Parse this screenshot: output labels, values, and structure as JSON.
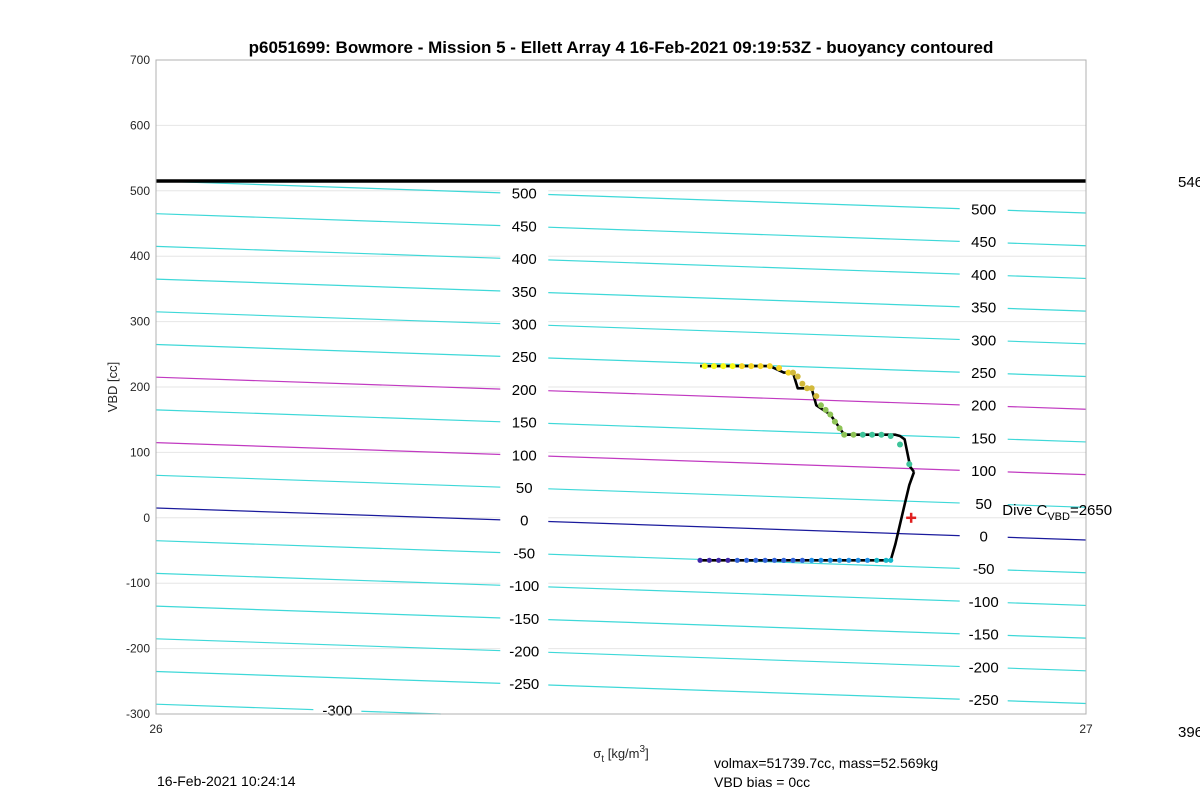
{
  "chart_data": {
    "type": "line",
    "title": "p6051699: Bowmore - Mission 5 - Ellett Array 4 16-Feb-2021 09:19:53Z - buoyancy contoured",
    "xlabel": "σ_t [kg/m³]",
    "xlabel_main": "σ",
    "xlabel_sub": "t",
    "xlabel_unit_prefix": "[kg/m",
    "xlabel_unit_sup": "3",
    "xlabel_unit_suffix": "]",
    "ylabel": "VBD [cc]",
    "xlim": [
      26,
      27
    ],
    "ylim": [
      -300,
      700
    ],
    "x_ticks": [
      "26",
      "27"
    ],
    "y_ticks": [
      "700",
      "600",
      "500",
      "400",
      "300",
      "200",
      "100",
      "0",
      "-100",
      "-200",
      "-300"
    ],
    "grid": true,
    "right_edge_labels": [
      "546",
      "396"
    ],
    "max_vbd_line": 515,
    "contours": {
      "y_at_left": [
        515,
        465,
        415,
        365,
        315,
        265,
        215,
        165,
        115,
        65,
        15,
        -35,
        -85,
        -135,
        -185,
        -235,
        -285
      ],
      "y_at_right": [
        466,
        416,
        366,
        316,
        266,
        216,
        166,
        116,
        66,
        16,
        -34,
        -84,
        -134,
        -184,
        -234,
        -284,
        -334
      ],
      "levels": [
        "500",
        "450",
        "400",
        "350",
        "300",
        "250",
        "200",
        "150",
        "100",
        "50",
        "0",
        "-50",
        "-100",
        "-150",
        "-200",
        "-250",
        "-300"
      ],
      "colors": [
        "#3ed8d8",
        "#3ed8d8",
        "#3ed8d8",
        "#3ed8d8",
        "#3ed8d8",
        "#3ed8d8",
        "#c13ac1",
        "#3ed8d8",
        "#c13ac1",
        "#3ed8d8",
        "#1a1a9c",
        "#3ed8d8",
        "#3ed8d8",
        "#3ed8d8",
        "#3ed8d8",
        "#3ed8d8",
        "#3ed8d8"
      ],
      "label_x_mid": 26.396,
      "label_x_right": 26.89,
      "bottom_label_x": 26.195
    },
    "series": [
      {
        "x": [
          26.585,
          26.66,
          26.675,
          26.685,
          26.69,
          26.705,
          26.71,
          26.725,
          26.74,
          26.795,
          26.8,
          26.805,
          26.81,
          26.81,
          26.815
        ],
        "y": [
          232,
          232,
          222,
          222,
          198,
          198,
          172,
          158,
          127,
          127,
          125,
          120,
          85,
          80,
          70
        ],
        "color": "#000000"
      },
      {
        "x": [
          26.585,
          26.79,
          26.795,
          26.8,
          26.805,
          26.81,
          26.815
        ],
        "y": [
          -65,
          -65,
          -40,
          -10,
          20,
          50,
          70
        ],
        "color": "#000000"
      }
    ],
    "descent_points": {
      "x": [
        26.59,
        26.6,
        26.61,
        26.62,
        26.63,
        26.64,
        26.65,
        26.66,
        26.67,
        26.68,
        26.685,
        26.69,
        26.695,
        26.7,
        26.705,
        26.71,
        26.715,
        26.72,
        26.725,
        26.73,
        26.735,
        26.74,
        26.75,
        26.76,
        26.77,
        26.78,
        26.79,
        26.8,
        26.81
      ],
      "y": [
        232,
        232,
        232,
        232,
        232,
        232,
        232,
        232,
        229,
        222,
        222,
        216,
        205,
        198,
        198,
        186,
        172,
        165,
        158,
        147,
        137,
        127,
        127,
        127,
        127,
        127,
        125,
        112,
        82
      ]
    },
    "ascent_points": {
      "x": [
        26.585,
        26.595,
        26.605,
        26.615,
        26.625,
        26.635,
        26.645,
        26.655,
        26.665,
        26.675,
        26.685,
        26.695,
        26.705,
        26.715,
        26.725,
        26.735,
        26.745,
        26.755,
        26.765,
        26.775,
        26.785,
        26.79
      ],
      "y": [
        -65,
        -65,
        -65,
        -65,
        -65,
        -65,
        -65,
        -65,
        -65,
        -65,
        -65,
        -65,
        -65,
        -65,
        -65,
        -65,
        -65,
        -65,
        -65,
        -65,
        -65,
        -65
      ]
    },
    "marker": {
      "x": 26.812,
      "y": 0,
      "color": "#e02020",
      "symbol": "+"
    },
    "annotation": {
      "prefix": "Dive C",
      "sub": "VBD",
      "suffix": "=2650",
      "x": 26.91,
      "y": 4
    }
  },
  "footer": {
    "timestamp": "16-Feb-2021 10:24:14",
    "volmax": "volmax=51739.7cc, mass=52.569kg",
    "bias": "VBD bias = 0cc"
  }
}
